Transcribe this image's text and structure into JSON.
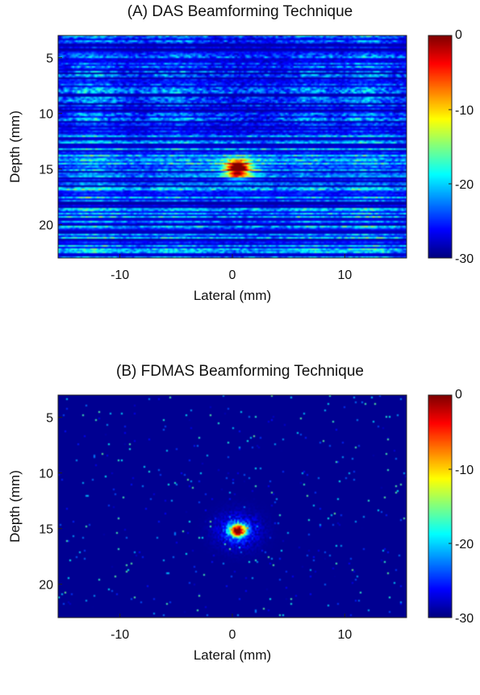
{
  "chart_data": [
    {
      "type": "heatmap",
      "title": "(A) DAS Beamforming Technique",
      "xlabel": "Lateral (mm)",
      "ylabel": "Depth (mm)",
      "xlim": [
        -15.5,
        15.5
      ],
      "ylim": [
        3,
        23
      ],
      "y_reversed": true,
      "xticks": [
        -10,
        0,
        10
      ],
      "yticks": [
        5,
        10,
        15,
        20
      ],
      "colorbar": {
        "min": -30,
        "max": 0,
        "ticks": [
          0,
          -10,
          -20,
          -30
        ],
        "colormap": "jet"
      },
      "point_target": {
        "x": 0.5,
        "y": 15,
        "peak": 0
      },
      "background_level": -22
    },
    {
      "type": "heatmap",
      "title": "(B) FDMAS Beamforming Technique",
      "xlabel": "Lateral (mm)",
      "ylabel": "Depth (mm)",
      "xlim": [
        -15.5,
        15.5
      ],
      "ylim": [
        3,
        23
      ],
      "y_reversed": true,
      "xticks": [
        -10,
        0,
        10
      ],
      "yticks": [
        5,
        10,
        15,
        20
      ],
      "colorbar": {
        "min": -30,
        "max": 0,
        "ticks": [
          0,
          -10,
          -20,
          -30
        ],
        "colormap": "jet"
      },
      "point_target": {
        "x": 0.5,
        "y": 15.2,
        "peak": 0
      },
      "background_level": -29
    }
  ]
}
